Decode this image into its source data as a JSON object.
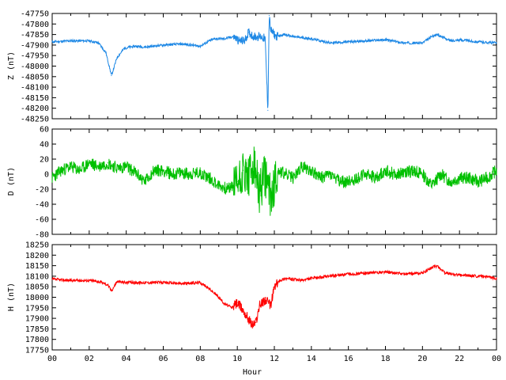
{
  "chart_data": [
    {
      "type": "line",
      "ylabel": "Z (nT)",
      "ylim": [
        -48250,
        -47750
      ],
      "yticks": [
        -47750,
        -47800,
        -47850,
        -47900,
        -47950,
        -48000,
        -48050,
        -48100,
        -48150,
        -48200,
        -48250
      ],
      "xlim": [
        0,
        24
      ],
      "color": "#1e88e5",
      "series": [
        {
          "x": [
            0,
            1,
            2,
            2.5,
            2.9,
            3.2,
            3.5,
            3.9,
            4.5,
            5,
            6,
            7,
            8,
            8.5,
            8.8,
            9.3,
            9.8,
            10.1,
            10.4,
            10.6,
            10.9,
            11.1,
            11.3,
            11.5,
            11.65,
            11.72,
            11.8,
            11.9,
            12.1,
            12.5,
            13,
            14,
            15,
            16,
            17,
            18,
            19,
            20,
            20.5,
            20.8,
            21.5,
            22,
            23,
            24
          ],
          "y": [
            -47885,
            -47880,
            -47880,
            -47890,
            -47935,
            -48045,
            -47960,
            -47915,
            -47905,
            -47910,
            -47900,
            -47895,
            -47905,
            -47880,
            -47870,
            -47870,
            -47860,
            -47880,
            -47880,
            -47840,
            -47860,
            -47860,
            -47860,
            -47870,
            -48210,
            -47760,
            -47830,
            -47840,
            -47860,
            -47850,
            -47860,
            -47870,
            -47890,
            -47885,
            -47880,
            -47875,
            -47890,
            -47890,
            -47860,
            -47850,
            -47880,
            -47875,
            -47885,
            -47890
          ]
        }
      ]
    },
    {
      "type": "line",
      "ylabel": "D (nT)",
      "ylim": [
        -80,
        60
      ],
      "yticks": [
        60,
        40,
        20,
        0,
        -20,
        -40,
        -60,
        -80
      ],
      "xlim": [
        0,
        24
      ],
      "color": "#00c000",
      "series": [
        {
          "x": [
            0,
            0.5,
            1,
            1.5,
            2,
            2.5,
            3,
            3.5,
            4,
            4.5,
            5,
            5.5,
            6,
            6.5,
            7,
            7.5,
            8,
            8.5,
            9,
            9.5,
            10,
            10.3,
            10.6,
            10.9,
            11.2,
            11.5,
            11.8,
            12.2,
            12.6,
            13,
            13.5,
            14,
            14.5,
            15,
            15.5,
            16,
            16.5,
            17,
            17.5,
            18,
            18.5,
            19,
            19.5,
            20,
            20.5,
            21,
            21.5,
            22,
            22.5,
            23,
            23.5,
            24
          ],
          "y": [
            -5,
            5,
            10,
            5,
            15,
            10,
            15,
            8,
            10,
            2,
            -10,
            5,
            5,
            0,
            2,
            0,
            2,
            -5,
            -15,
            -20,
            -10,
            5,
            -5,
            10,
            -25,
            0,
            -30,
            5,
            0,
            -5,
            10,
            5,
            -5,
            0,
            -10,
            -10,
            -5,
            0,
            -5,
            5,
            0,
            2,
            5,
            0,
            -15,
            0,
            -10,
            -5,
            -5,
            -10,
            -5,
            5
          ]
        }
      ]
    },
    {
      "type": "line",
      "ylabel": "H (nT)",
      "xlabel": "Hour",
      "ylim": [
        17750,
        18250
      ],
      "yticks": [
        18250,
        18200,
        18150,
        18100,
        18050,
        18000,
        17950,
        17900,
        17850,
        17800,
        17750
      ],
      "xlim": [
        0,
        24
      ],
      "xticks": [
        "00",
        "02",
        "04",
        "06",
        "08",
        "10",
        "12",
        "14",
        "16",
        "18",
        "20",
        "22",
        "00"
      ],
      "color": "#ff0000",
      "series": [
        {
          "x": [
            0,
            1,
            2,
            2.5,
            3,
            3.2,
            3.5,
            4,
            5,
            6,
            7,
            8,
            8.5,
            9,
            9.3,
            9.7,
            10,
            10.3,
            10.6,
            10.8,
            11,
            11.2,
            11.5,
            11.8,
            12,
            12.3,
            12.6,
            13,
            13.5,
            14,
            15,
            16,
            17,
            18,
            19,
            20,
            20.5,
            20.8,
            21.2,
            22,
            23,
            24
          ],
          "y": [
            18085,
            18080,
            18080,
            18075,
            18060,
            18030,
            18075,
            18070,
            18070,
            18070,
            18065,
            18070,
            18040,
            18000,
            17970,
            17950,
            17975,
            17940,
            17900,
            17870,
            17880,
            17960,
            17990,
            17960,
            18050,
            18080,
            18090,
            18085,
            18080,
            18090,
            18100,
            18110,
            18115,
            18120,
            18110,
            18115,
            18140,
            18150,
            18115,
            18105,
            18100,
            18090
          ]
        }
      ]
    }
  ]
}
